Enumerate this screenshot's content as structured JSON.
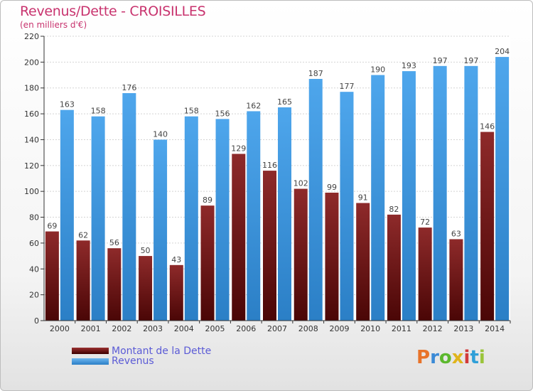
{
  "title": "Revenus/Dette - CROISILLES",
  "subtitle": "(en milliers d'€)",
  "logo": {
    "text": "Proxiti",
    "colors": [
      "#e8732a",
      "#3a8ad6",
      "#5cb82e",
      "#e0b41c",
      "#d23a3a",
      "#2f9fd8",
      "#9ac43a"
    ]
  },
  "colors": {
    "dette": "#8b1e1e",
    "revenus": "#3f9ae0",
    "title": "#c8336e",
    "legend_text": "#5b5bd6"
  },
  "chart_data": {
    "type": "bar",
    "title": "Revenus/Dette - CROISILLES",
    "subtitle": "(en milliers d'€)",
    "categories": [
      "2000",
      "2001",
      "2002",
      "2003",
      "2004",
      "2005",
      "2006",
      "2007",
      "2008",
      "2009",
      "2010",
      "2011",
      "2012",
      "2013",
      "2014"
    ],
    "series": [
      {
        "name": "Montant de la Dette",
        "values": [
          69,
          62,
          56,
          50,
          43,
          89,
          129,
          116,
          102,
          99,
          91,
          82,
          72,
          63,
          146
        ]
      },
      {
        "name": "Revenus",
        "values": [
          163,
          158,
          176,
          140,
          158,
          156,
          162,
          165,
          187,
          177,
          190,
          193,
          197,
          197,
          204
        ]
      }
    ],
    "ylim": [
      0,
      220
    ],
    "yticks": [
      0,
      20,
      40,
      60,
      80,
      100,
      120,
      140,
      160,
      180,
      200,
      220
    ],
    "grid": true,
    "legend_position": "bottom-left"
  }
}
